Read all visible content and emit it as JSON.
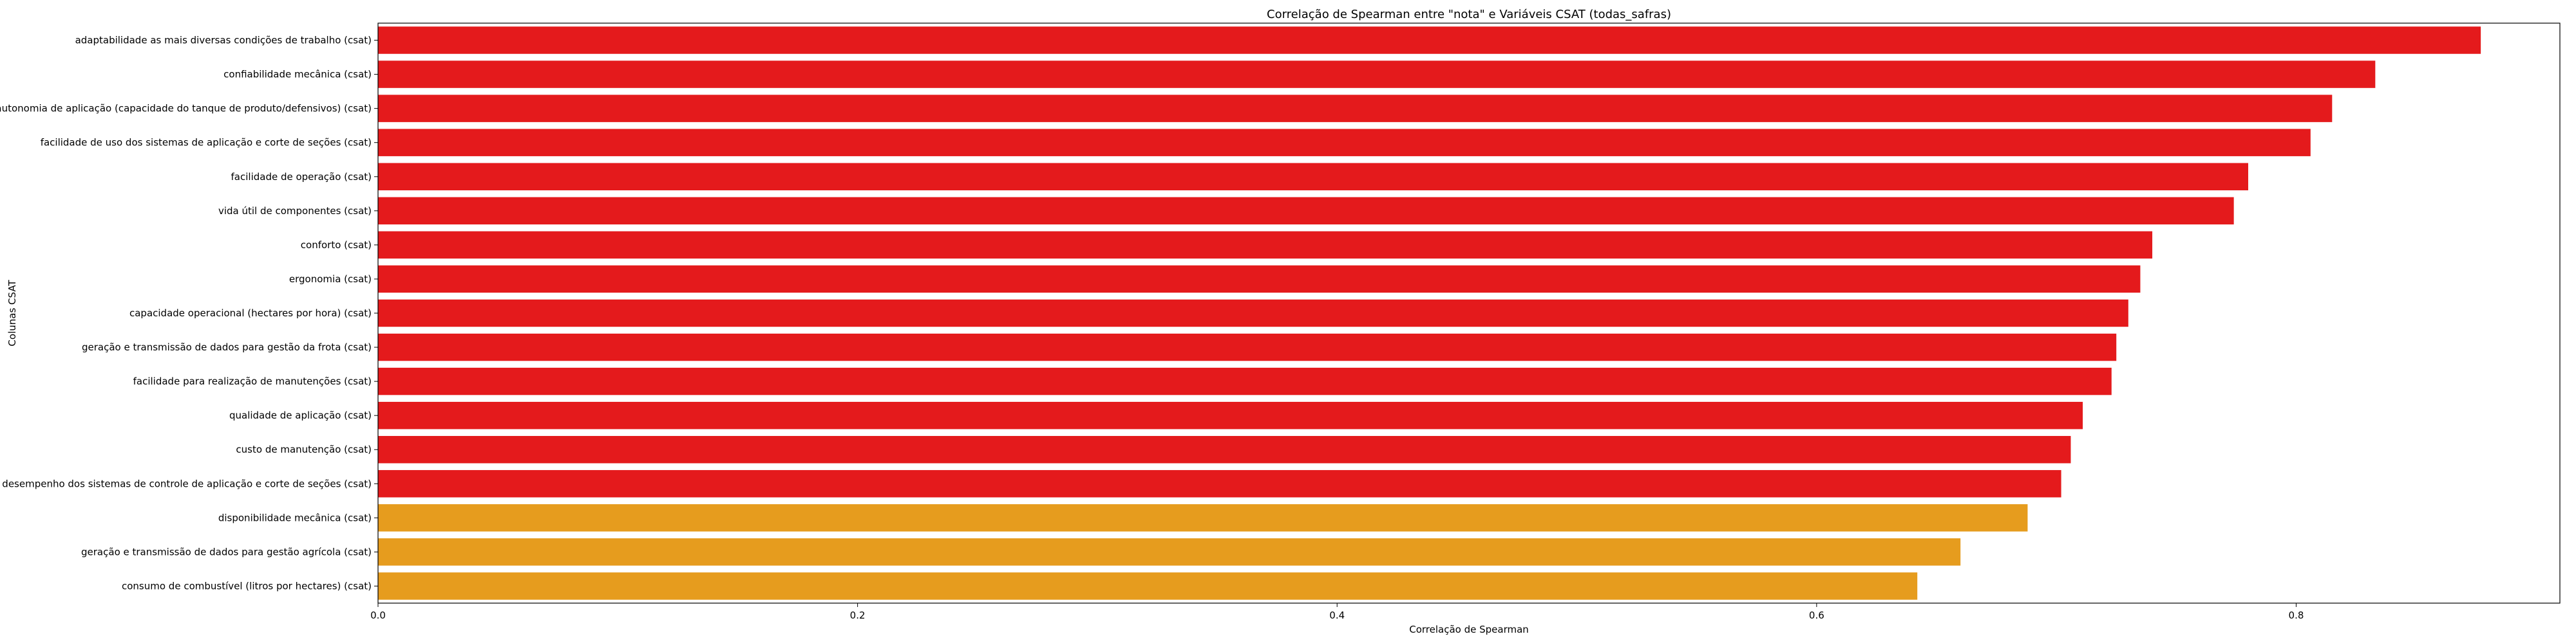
{
  "chart_data": {
    "type": "bar",
    "orientation": "horizontal",
    "title": "Correlação de Spearman entre \"nota\" e Variáveis CSAT (todas_safras)",
    "xlabel": "Correlação de Spearman",
    "ylabel": "Colunas CSAT",
    "xlim": [
      0.0,
      0.91
    ],
    "xticks": [
      "0.0",
      "0.2",
      "0.4",
      "0.6",
      "0.8"
    ],
    "categories": [
      "adaptabilidade as mais diversas condições de trabalho (csat)",
      "confiabilidade mecânica (csat)",
      "autonomia de aplicação (capacidade do tanque de produto/defensivos) (csat)",
      "facilidade de uso dos sistemas de aplicação e corte de seções (csat)",
      "facilidade de operação (csat)",
      "vida útil de componentes (csat)",
      "conforto (csat)",
      "ergonomia (csat)",
      "capacidade operacional (hectares por hora) (csat)",
      "geração e transmissão de dados para gestão da frota (csat)",
      "facilidade para realização de manutenções (csat)",
      "qualidade de aplicação (csat)",
      "custo de manutenção (csat)",
      "desempenho dos sistemas de controle de aplicação e corte de seções (csat)",
      "disponibilidade mecânica (csat)",
      "geração e transmissão de dados para gestão agrícola (csat)",
      "consumo de combustível (litros por hectares) (csat)"
    ],
    "values": [
      0.877,
      0.833,
      0.815,
      0.806,
      0.78,
      0.774,
      0.74,
      0.735,
      0.73,
      0.725,
      0.723,
      0.711,
      0.706,
      0.702,
      0.688,
      0.66,
      0.642
    ],
    "colors": [
      "#e41a1c",
      "#e41a1c",
      "#e41a1c",
      "#e41a1c",
      "#e41a1c",
      "#e41a1c",
      "#e41a1c",
      "#e41a1c",
      "#e41a1c",
      "#e41a1c",
      "#e41a1c",
      "#e41a1c",
      "#e41a1c",
      "#e41a1c",
      "#e69c1e",
      "#e69c1e",
      "#e69c1e"
    ],
    "grid": false,
    "legend": "none"
  }
}
